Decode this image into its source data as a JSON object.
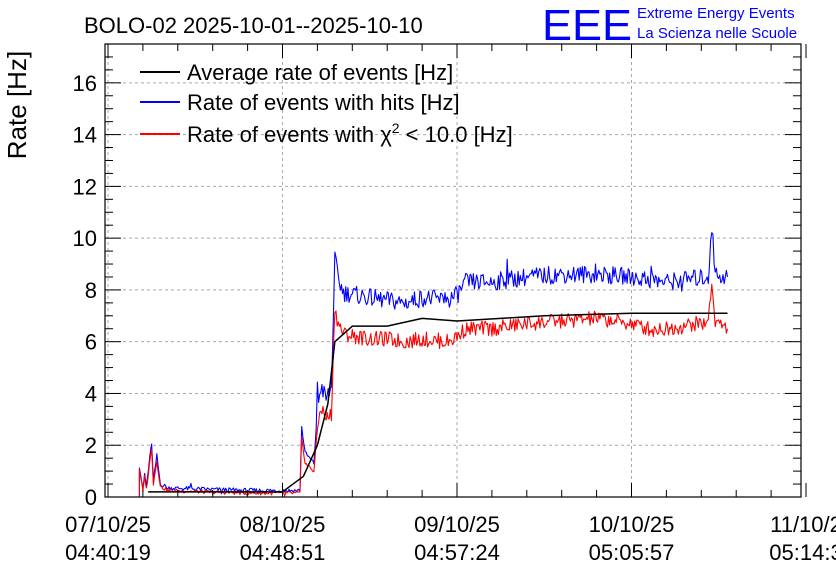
{
  "chart_data": {
    "type": "line",
    "title": "BOLO-02 2025-10-01--2025-10-10",
    "ylabel": "Rate [Hz]",
    "xlabel": "",
    "ylim": [
      0,
      17.5
    ],
    "yticks": [
      0,
      2,
      4,
      6,
      8,
      10,
      12,
      14,
      16
    ],
    "xlim": [
      0,
      4
    ],
    "xticks": [
      {
        "pos": 0,
        "date": "07/10/25",
        "time": "04:40:19"
      },
      {
        "pos": 1,
        "date": "08/10/25",
        "time": "04:48:51"
      },
      {
        "pos": 2,
        "date": "09/10/25",
        "time": "04:57:24"
      },
      {
        "pos": 3,
        "date": "10/10/25",
        "time": "05:05:57"
      },
      {
        "pos": 4,
        "date": "11/10/2",
        "time": "05:14:3"
      }
    ],
    "grid": true,
    "legend_position": "top-left",
    "series": [
      {
        "name": "Average rate of events [Hz]",
        "color": "#000000",
        "noise": 0,
        "points": [
          [
            0.23,
            0.2
          ],
          [
            0.9,
            0.2
          ],
          [
            1.0,
            0.2
          ],
          [
            1.12,
            0.8
          ],
          [
            1.2,
            2.0
          ],
          [
            1.26,
            3.6
          ],
          [
            1.3,
            6.0
          ],
          [
            1.4,
            6.6
          ],
          [
            1.6,
            6.6
          ],
          [
            1.8,
            6.9
          ],
          [
            2.0,
            6.8
          ],
          [
            2.5,
            7.0
          ],
          [
            3.0,
            7.1
          ],
          [
            3.45,
            7.1
          ],
          [
            3.55,
            7.1
          ]
        ]
      },
      {
        "name": "Rate of events with hits [Hz]",
        "color": "#0000ff",
        "noise": 0.35,
        "points": [
          [
            0.18,
            0.0
          ],
          [
            0.18,
            1.2
          ],
          [
            0.2,
            0.3
          ],
          [
            0.21,
            0.9
          ],
          [
            0.22,
            0.4
          ],
          [
            0.25,
            2.1
          ],
          [
            0.26,
            0.6
          ],
          [
            0.28,
            1.6
          ],
          [
            0.3,
            0.5
          ],
          [
            0.35,
            0.35
          ],
          [
            0.55,
            0.3
          ],
          [
            0.8,
            0.25
          ],
          [
            1.0,
            0.25
          ],
          [
            1.1,
            0.25
          ],
          [
            1.11,
            2.7
          ],
          [
            1.13,
            1.7
          ],
          [
            1.18,
            1.3
          ],
          [
            1.2,
            3.4
          ],
          [
            1.22,
            4.3
          ],
          [
            1.25,
            3.8
          ],
          [
            1.28,
            4.2
          ],
          [
            1.3,
            9.2
          ],
          [
            1.32,
            8.4
          ],
          [
            1.35,
            7.9
          ],
          [
            1.5,
            7.7
          ],
          [
            1.6,
            7.6
          ],
          [
            1.7,
            7.5
          ],
          [
            1.8,
            7.7
          ],
          [
            1.95,
            7.6
          ],
          [
            2.0,
            7.8
          ],
          [
            2.05,
            8.3
          ],
          [
            2.2,
            8.3
          ],
          [
            2.4,
            8.5
          ],
          [
            2.6,
            8.6
          ],
          [
            2.8,
            8.6
          ],
          [
            3.0,
            8.5
          ],
          [
            3.1,
            8.4
          ],
          [
            3.2,
            8.3
          ],
          [
            3.3,
            8.4
          ],
          [
            3.44,
            8.5
          ],
          [
            3.46,
            10.5
          ],
          [
            3.48,
            8.6
          ],
          [
            3.55,
            8.5
          ]
        ]
      },
      {
        "name": "Rate of events with χ² < 10.0 [Hz]",
        "color": "#ff0000",
        "noise": 0.3,
        "points": [
          [
            0.18,
            0.0
          ],
          [
            0.18,
            1.1
          ],
          [
            0.2,
            0.2
          ],
          [
            0.21,
            0.8
          ],
          [
            0.22,
            0.3
          ],
          [
            0.25,
            1.9
          ],
          [
            0.26,
            0.5
          ],
          [
            0.28,
            1.4
          ],
          [
            0.3,
            0.4
          ],
          [
            0.35,
            0.25
          ],
          [
            0.55,
            0.2
          ],
          [
            0.8,
            0.15
          ],
          [
            1.0,
            0.15
          ],
          [
            1.1,
            0.15
          ],
          [
            1.11,
            2.3
          ],
          [
            1.13,
            1.3
          ],
          [
            1.18,
            1.0
          ],
          [
            1.2,
            2.6
          ],
          [
            1.22,
            3.5
          ],
          [
            1.25,
            3.0
          ],
          [
            1.28,
            3.2
          ],
          [
            1.3,
            7.3
          ],
          [
            1.32,
            6.7
          ],
          [
            1.35,
            6.3
          ],
          [
            1.5,
            6.1
          ],
          [
            1.6,
            6.1
          ],
          [
            1.7,
            6.0
          ],
          [
            1.8,
            6.1
          ],
          [
            1.95,
            6.0
          ],
          [
            2.0,
            6.2
          ],
          [
            2.05,
            6.5
          ],
          [
            2.2,
            6.5
          ],
          [
            2.4,
            6.7
          ],
          [
            2.6,
            6.8
          ],
          [
            2.8,
            6.9
          ],
          [
            3.0,
            6.7
          ],
          [
            3.1,
            6.5
          ],
          [
            3.2,
            6.5
          ],
          [
            3.3,
            6.6
          ],
          [
            3.44,
            6.8
          ],
          [
            3.46,
            8.3
          ],
          [
            3.48,
            6.8
          ],
          [
            3.55,
            6.5
          ]
        ]
      }
    ],
    "legend": [
      {
        "label_main": "Average rate of events [Hz]",
        "sup": "",
        "label_tail": "",
        "color": "#000000"
      },
      {
        "label_main": "Rate of events with hits [Hz]",
        "sup": "",
        "label_tail": "",
        "color": "#0000ff"
      },
      {
        "label_main": "Rate of events with χ",
        "sup": "2",
        "label_tail": " < 10.0 [Hz]",
        "color": "#ff0000"
      }
    ]
  },
  "logo": {
    "mark": "EEE",
    "line1": "Extreme Energy Events",
    "line2": "La Scienza nelle Scuole",
    "color": "#0000ff"
  }
}
